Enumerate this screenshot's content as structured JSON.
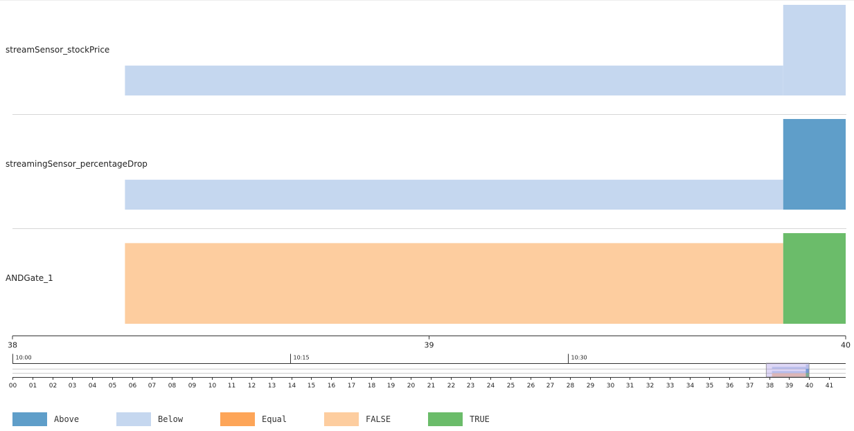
{
  "chart_data": {
    "type": "timeline",
    "rows": [
      {
        "name": "streamSensor_stockPrice",
        "segments": [
          {
            "start": 38.27,
            "end": 39.85,
            "state": "Below",
            "level": 0.33
          },
          {
            "start": 39.85,
            "end": 40.0,
            "state": "Below",
            "level": 1.0
          }
        ]
      },
      {
        "name": "streamingSensor_percentageDrop",
        "segments": [
          {
            "start": 38.27,
            "end": 39.85,
            "state": "Below",
            "level": 0.33
          },
          {
            "start": 39.85,
            "end": 40.0,
            "state": "Above",
            "level": 1.0
          }
        ]
      },
      {
        "name": "ANDGate_1",
        "segments": [
          {
            "start": 38.27,
            "end": 39.85,
            "state": "FALSE",
            "level": 0.89
          },
          {
            "start": 39.85,
            "end": 40.0,
            "state": "TRUE",
            "level": 1.0
          }
        ]
      }
    ],
    "x_axis": {
      "range": [
        38,
        40
      ],
      "tick_labels": [
        "38",
        "39",
        "40"
      ]
    },
    "sub_axis": {
      "range": [
        0,
        45
      ],
      "ticks": [
        {
          "value": 0,
          "label": "10:00"
        },
        {
          "value": 15,
          "label": "10:15"
        },
        {
          "value": 30,
          "label": "10:30"
        }
      ]
    },
    "overview_axis": {
      "range": [
        0,
        41.84
      ],
      "tick_labels": [
        "00",
        "01",
        "02",
        "03",
        "04",
        "05",
        "06",
        "07",
        "08",
        "09",
        "10",
        "11",
        "12",
        "13",
        "14",
        "15",
        "16",
        "17",
        "18",
        "19",
        "20",
        "21",
        "22",
        "23",
        "24",
        "25",
        "26",
        "27",
        "28",
        "29",
        "30",
        "31",
        "32",
        "33",
        "34",
        "35",
        "36",
        "37",
        "38",
        "39",
        "40",
        "41"
      ],
      "brush": [
        37.85,
        40
      ]
    },
    "legend": [
      {
        "label": "Above",
        "color": "#5f9ec9"
      },
      {
        "label": "Below",
        "color": "#c5d7ef"
      },
      {
        "label": "Equal",
        "color": "#fda558"
      },
      {
        "label": "FALSE",
        "color": "#fdcd9f"
      },
      {
        "label": "TRUE",
        "color": "#6bbc6a"
      }
    ],
    "legend_position": "bottom"
  }
}
